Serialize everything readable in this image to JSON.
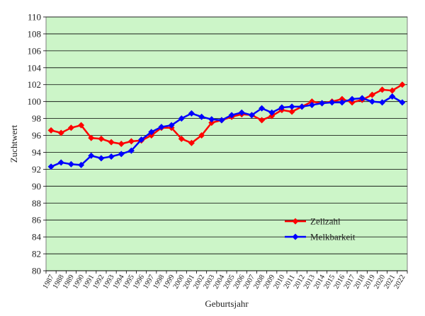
{
  "chart_data": {
    "type": "line",
    "xlabel": "Geburtsjahr",
    "ylabel": "Zuchtwert",
    "ylim": [
      80,
      110
    ],
    "yticks": [
      "80",
      "82",
      "84",
      "86",
      "88",
      "90",
      "92",
      "94",
      "96",
      "98",
      "100",
      "102",
      "104",
      "106",
      "108",
      "110"
    ],
    "categories": [
      "1987",
      "1988",
      "1989",
      "1990",
      "1991",
      "1992",
      "1993",
      "1994",
      "1995",
      "1996",
      "1997",
      "1998",
      "1999",
      "2000",
      "2001",
      "2002",
      "2003",
      "2004",
      "2005",
      "2006",
      "2007",
      "2008",
      "2009",
      "2010",
      "2011",
      "2012",
      "2013",
      "2014",
      "2015",
      "2016",
      "2017",
      "2018",
      "2019",
      "2020",
      "2021",
      "2022"
    ],
    "grid": "horizontal",
    "legend_position": "bottom-right",
    "plot_background": "#ccf5c8",
    "series": [
      {
        "name": "Zellzahl",
        "color": "#ff0000",
        "values": [
          96.6,
          96.3,
          96.9,
          97.2,
          95.7,
          95.6,
          95.2,
          95.0,
          95.3,
          95.4,
          96.0,
          96.9,
          96.9,
          95.6,
          95.1,
          96.0,
          97.5,
          97.8,
          98.2,
          98.5,
          98.4,
          97.8,
          98.3,
          99.0,
          98.8,
          99.4,
          100.0,
          99.8,
          100.0,
          100.3,
          99.9,
          100.2,
          100.8,
          101.4,
          101.3,
          102.0
        ]
      },
      {
        "name": "Melkbarkeit",
        "color": "#0000ff",
        "values": [
          92.3,
          92.8,
          92.6,
          92.5,
          93.6,
          93.3,
          93.5,
          93.8,
          94.2,
          95.5,
          96.4,
          97.0,
          97.2,
          98.0,
          98.6,
          98.2,
          97.9,
          97.8,
          98.4,
          98.7,
          98.4,
          99.2,
          98.7,
          99.3,
          99.4,
          99.4,
          99.6,
          99.8,
          99.9,
          99.9,
          100.3,
          100.4,
          100.0,
          99.9,
          100.6,
          99.9
        ]
      }
    ]
  }
}
